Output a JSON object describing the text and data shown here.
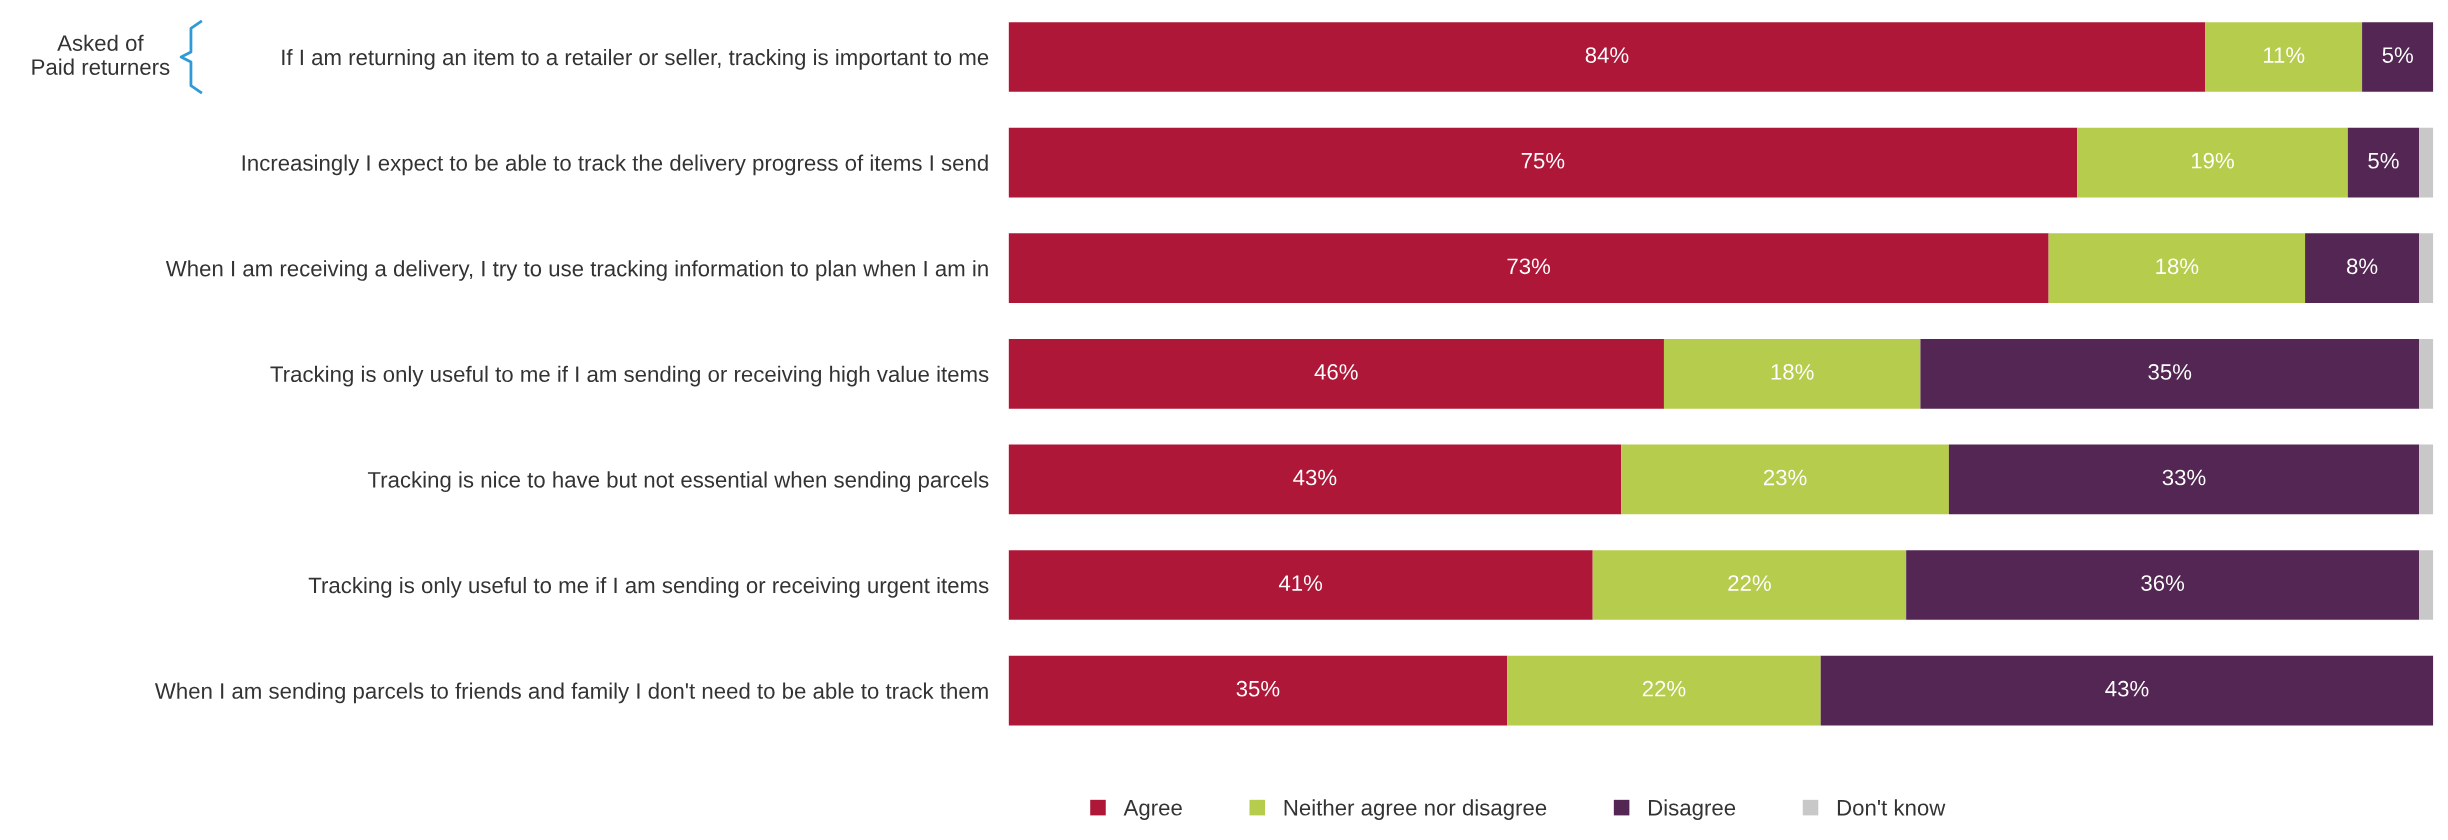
{
  "chart_data": {
    "type": "bar",
    "orientation": "horizontal",
    "stacked": true,
    "xlim": [
      0,
      100
    ],
    "categories": [
      "If I am returning an item to a retailer or seller, tracking is important to me",
      "Increasingly I expect to be able to track the delivery progress of items I send",
      "When I am receiving a delivery, I try to use tracking information to plan when I am in",
      "Tracking is only useful to me if I am sending or receiving high value items",
      "Tracking is nice to have but not essential when sending parcels",
      "Tracking is only useful to me if I am sending or receiving urgent items",
      "When I am sending parcels to friends and family I don't need to be able to track them"
    ],
    "series": [
      {
        "name": "Agree",
        "color": "#ae1738",
        "values": [
          84,
          75,
          73,
          46,
          43,
          41,
          35
        ],
        "value_labels": [
          "84%",
          "75%",
          "73%",
          "46%",
          "43%",
          "41%",
          "35%"
        ]
      },
      {
        "name": "Neither agree nor disagree",
        "color": "#b5cc4c",
        "values": [
          11,
          19,
          18,
          18,
          23,
          22,
          22
        ],
        "value_labels": [
          "11%",
          "19%",
          "18%",
          "18%",
          "23%",
          "22%",
          "22%"
        ]
      },
      {
        "name": "Disagree",
        "color": "#532653",
        "values": [
          5,
          5,
          8,
          35,
          33,
          36,
          43
        ],
        "value_labels": [
          "5%",
          "5%",
          "8%",
          "35%",
          "33%",
          "36%",
          "43%"
        ]
      },
      {
        "name": "Don't know",
        "color": "#c8c8c8",
        "values": [
          0,
          1,
          1,
          1,
          1,
          1,
          0
        ],
        "value_labels": [
          null,
          null,
          null,
          null,
          null,
          null,
          null
        ]
      }
    ],
    "annotations": [
      "Asked of\nPaid returners"
    ],
    "legend": "bottom",
    "grid": false
  }
}
